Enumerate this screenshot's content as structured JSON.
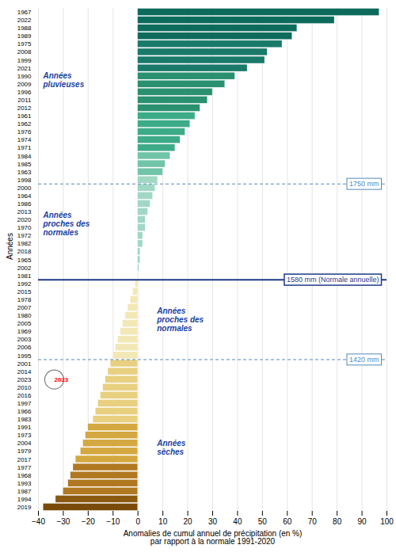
{
  "chart_data": {
    "type": "bar",
    "orientation": "horizontal",
    "xlabel": "Anomalies de cumul annuel de précipitation (en %)\npar rapport à la normale 1991-2020",
    "ylabel": "Années",
    "categories": [
      "1967",
      "2022",
      "1988",
      "1989",
      "1975",
      "2008",
      "1999",
      "2021",
      "1990",
      "2009",
      "1996",
      "2011",
      "2012",
      "1961",
      "1962",
      "1976",
      "1974",
      "1971",
      "1984",
      "1985",
      "1963",
      "1998",
      "2000",
      "1964",
      "1986",
      "2013",
      "2020",
      "1970",
      "1972",
      "1982",
      "2018",
      "1965",
      "2002",
      "1981",
      "1992",
      "2015",
      "1978",
      "2007",
      "1980",
      "2005",
      "1969",
      "2003",
      "2006",
      "1995",
      "2001",
      "2014",
      "2023",
      "2010",
      "2016",
      "1997",
      "1966",
      "1983",
      "1991",
      "1973",
      "2004",
      "1979",
      "2017",
      "1977",
      "1968",
      "1993",
      "1987",
      "1994",
      "2019"
    ],
    "values": [
      97,
      79,
      64,
      62,
      58,
      52,
      51,
      44,
      39,
      35,
      30,
      28,
      25,
      23,
      21,
      19,
      17,
      15,
      13,
      11,
      10,
      8,
      7,
      6,
      5,
      4,
      3,
      3,
      2,
      2,
      1,
      1,
      0.5,
      0,
      -1,
      -2,
      -3,
      -4,
      -5,
      -6,
      -7,
      -8,
      -9,
      -10,
      -11,
      -12,
      -13,
      -14,
      -15,
      -16,
      -17,
      -18,
      -20,
      -21,
      -22,
      -23,
      -25,
      -26,
      -27,
      -28,
      -30,
      -33,
      -38
    ],
    "colors": [
      "#0d6b5c",
      "#0d6b5c",
      "#0d6b5c",
      "#0d6b5c",
      "#1a7a6a",
      "#1a7a6a",
      "#1a7a6a",
      "#1a7a6a",
      "#2a9070",
      "#2a9070",
      "#2a9070",
      "#2a9070",
      "#2a9070",
      "#3dab88",
      "#3dab88",
      "#3dab88",
      "#3dab88",
      "#3dab88",
      "#70c4a8",
      "#70c4a8",
      "#70c4a8",
      "#a0d8c4",
      "#a0d8c4",
      "#a0d8c4",
      "#a0d8c4",
      "#a0d8c4",
      "#a0d8c4",
      "#a0d8c4",
      "#a0d8c4",
      "#a0d8c4",
      "#a0d8c4",
      "#a0d8c4",
      "#a0d8c4",
      "#c5eade",
      "#f2e8b5",
      "#f2e8b5",
      "#f2e8b5",
      "#f2e8b5",
      "#f2e8b5",
      "#f2e8b5",
      "#f2e8b5",
      "#f2e8b5",
      "#f2e8b5",
      "#f2e8b5",
      "#e8d080",
      "#e8d080",
      "#e8d080",
      "#e8d080",
      "#e8d080",
      "#e8d080",
      "#e8d080",
      "#e8d080",
      "#d4a840",
      "#d4a840",
      "#d4a840",
      "#d4a840",
      "#d4a840",
      "#b07820",
      "#b07820",
      "#b07820",
      "#b07820",
      "#8b5a10",
      "#7a4a08"
    ],
    "xlim": [
      -40,
      100
    ],
    "xticks": [
      -40,
      -30,
      -20,
      -10,
      0,
      10,
      20,
      30,
      40,
      50,
      60,
      70,
      80,
      90,
      100
    ],
    "grid": true,
    "reference_lines": [
      {
        "label": "1750 mm",
        "after": "1998",
        "line_style": "dashed",
        "color": "#5588bb"
      },
      {
        "label": "1580 mm (Normale annuelle)",
        "after": "1981",
        "line_style": "solid",
        "color": "#1e3a8a"
      },
      {
        "label": "1420 mm",
        "after": "1995",
        "line_style": "dashed",
        "color": "#5588bb"
      }
    ],
    "annotations": [
      {
        "text": "Années\npluvieuses",
        "after": "1990",
        "color": "#1a3fa0"
      },
      {
        "text": "Années\nproches des\nnormales",
        "after": "2020",
        "color": "#1a3fa0"
      },
      {
        "text": "Années\nproches des\nnormales",
        "after": "1980",
        "color": "#1a3fa0"
      },
      {
        "text": "Années\nsèches",
        "after": "2004",
        "color": "#1a3fa0"
      },
      {
        "text": "2023",
        "category": "2023",
        "color": "red"
      }
    ]
  }
}
